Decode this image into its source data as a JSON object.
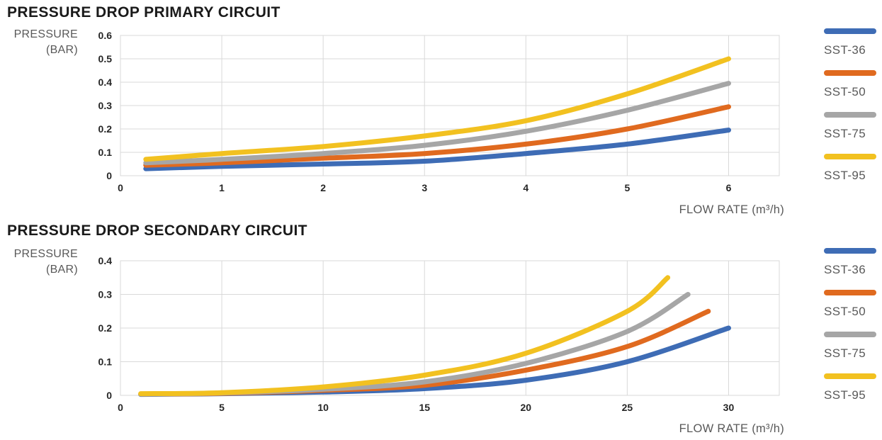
{
  "colors": {
    "grid": "#d9d9d9",
    "title_text": "#1a1a1a",
    "tick_text": "#262626",
    "axis_label_text": "#595959",
    "sst36": "#3e6cb5",
    "sst50": "#e06a1f",
    "sst75": "#a6a6a6",
    "sst95": "#f2c120"
  },
  "legend": {
    "items": [
      {
        "label": "SST-36",
        "color": "#3e6cb5"
      },
      {
        "label": "SST-50",
        "color": "#e06a1f"
      },
      {
        "label": "SST-75",
        "color": "#a6a6a6"
      },
      {
        "label": "SST-95",
        "color": "#f2c120"
      }
    ]
  },
  "chart_data": [
    {
      "type": "line",
      "title": "PRESSURE DROP PRIMARY CIRCUIT",
      "ylabel_line1": "PRESSURE",
      "ylabel_line2": "(BAR)",
      "xlabel": "FLOW RATE (m³/h)",
      "x_ticks": [
        0,
        1,
        2,
        3,
        4,
        5,
        6
      ],
      "y_ticks": [
        0,
        0.1,
        0.2,
        0.3,
        0.4,
        0.5,
        0.6
      ],
      "xlim": [
        0,
        6.5
      ],
      "ylim": [
        0,
        0.6
      ],
      "grid": true,
      "legend_position": "right",
      "series": [
        {
          "name": "SST-36",
          "color": "#3e6cb5",
          "x": [
            0.25,
            1,
            2,
            3,
            4,
            5,
            6
          ],
          "y": [
            0.03,
            0.04,
            0.05,
            0.062,
            0.095,
            0.135,
            0.195
          ]
        },
        {
          "name": "SST-50",
          "color": "#e06a1f",
          "x": [
            0.25,
            1,
            2,
            3,
            4,
            5,
            6
          ],
          "y": [
            0.045,
            0.055,
            0.075,
            0.095,
            0.135,
            0.2,
            0.295
          ]
        },
        {
          "name": "SST-75",
          "color": "#a6a6a6",
          "x": [
            0.25,
            1,
            2,
            3,
            4,
            5,
            6
          ],
          "y": [
            0.055,
            0.07,
            0.095,
            0.13,
            0.19,
            0.28,
            0.395
          ]
        },
        {
          "name": "SST-95",
          "color": "#f2c120",
          "x": [
            0.25,
            1,
            2,
            3,
            4,
            5,
            6
          ],
          "y": [
            0.07,
            0.095,
            0.125,
            0.17,
            0.235,
            0.35,
            0.5
          ]
        }
      ]
    },
    {
      "type": "line",
      "title": "PRESSURE DROP SECONDARY CIRCUIT",
      "ylabel_line1": "PRESSURE",
      "ylabel_line2": "(BAR)",
      "xlabel": "FLOW RATE (m³/h)",
      "x_ticks": [
        0,
        5,
        10,
        15,
        20,
        25,
        30
      ],
      "y_ticks": [
        0,
        0.1,
        0.2,
        0.3,
        0.4
      ],
      "xlim": [
        0,
        32.5
      ],
      "ylim": [
        0,
        0.4
      ],
      "grid": true,
      "legend_position": "right",
      "series": [
        {
          "name": "SST-36",
          "color": "#3e6cb5",
          "x": [
            1,
            5,
            10,
            15,
            20,
            25,
            30
          ],
          "y": [
            0.003,
            0.005,
            0.01,
            0.02,
            0.045,
            0.1,
            0.2
          ]
        },
        {
          "name": "SST-50",
          "color": "#e06a1f",
          "x": [
            1,
            5,
            10,
            15,
            20,
            25,
            29
          ],
          "y": [
            0.004,
            0.006,
            0.015,
            0.03,
            0.075,
            0.145,
            0.25
          ]
        },
        {
          "name": "SST-75",
          "color": "#a6a6a6",
          "x": [
            1,
            5,
            10,
            15,
            20,
            25,
            28
          ],
          "y": [
            0.004,
            0.007,
            0.018,
            0.04,
            0.095,
            0.19,
            0.3
          ]
        },
        {
          "name": "SST-95",
          "color": "#f2c120",
          "x": [
            1,
            5,
            10,
            15,
            20,
            25,
            27
          ],
          "y": [
            0.005,
            0.008,
            0.025,
            0.06,
            0.125,
            0.25,
            0.35
          ]
        }
      ]
    }
  ]
}
